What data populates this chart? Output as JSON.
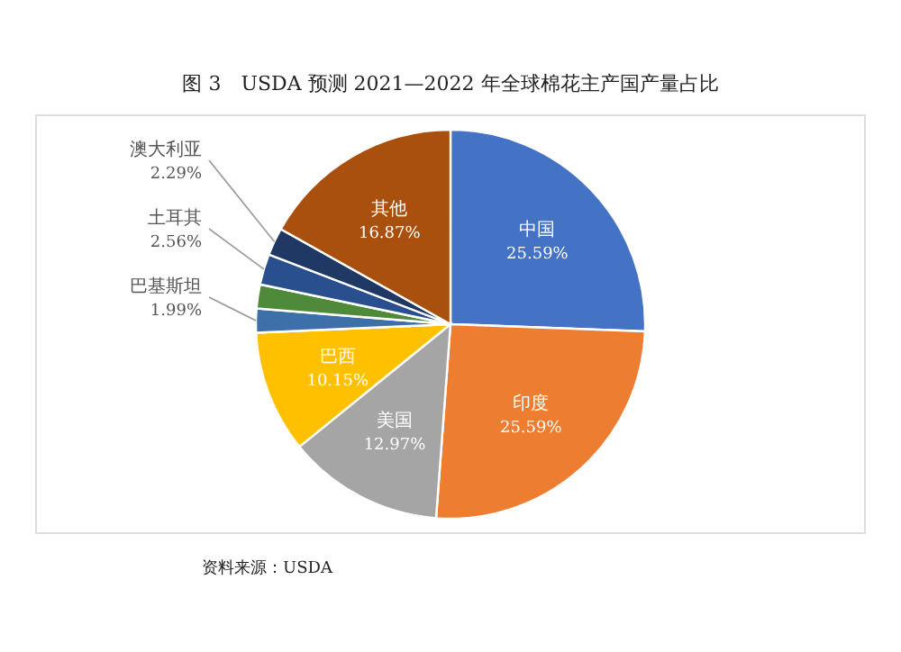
{
  "chart_data": {
    "type": "pie",
    "title": "图 3　USDA 预测 2021—2022 年全球棉花主产国产量占比",
    "categories": [
      "中国",
      "印度",
      "美国",
      "巴西",
      "巴基斯坦",
      null,
      "土耳其",
      "澳大利亚",
      "其他"
    ],
    "values": [
      25.59,
      25.59,
      12.97,
      10.15,
      1.99,
      1.99,
      2.56,
      2.29,
      16.87
    ],
    "colors": [
      "#4472c4",
      "#ed7d31",
      "#a5a5a5",
      "#ffc000",
      "#3d6fa8",
      "#4f8a3a",
      "#2a4f8f",
      "#1f3864",
      "#a9500f"
    ],
    "value_labels": [
      "25.59%",
      "25.59%",
      "12.97%",
      "10.15%",
      "1.99%",
      null,
      "2.56%",
      "2.29%",
      "16.87%"
    ],
    "annotations": [
      "资料来源：USDA"
    ]
  }
}
